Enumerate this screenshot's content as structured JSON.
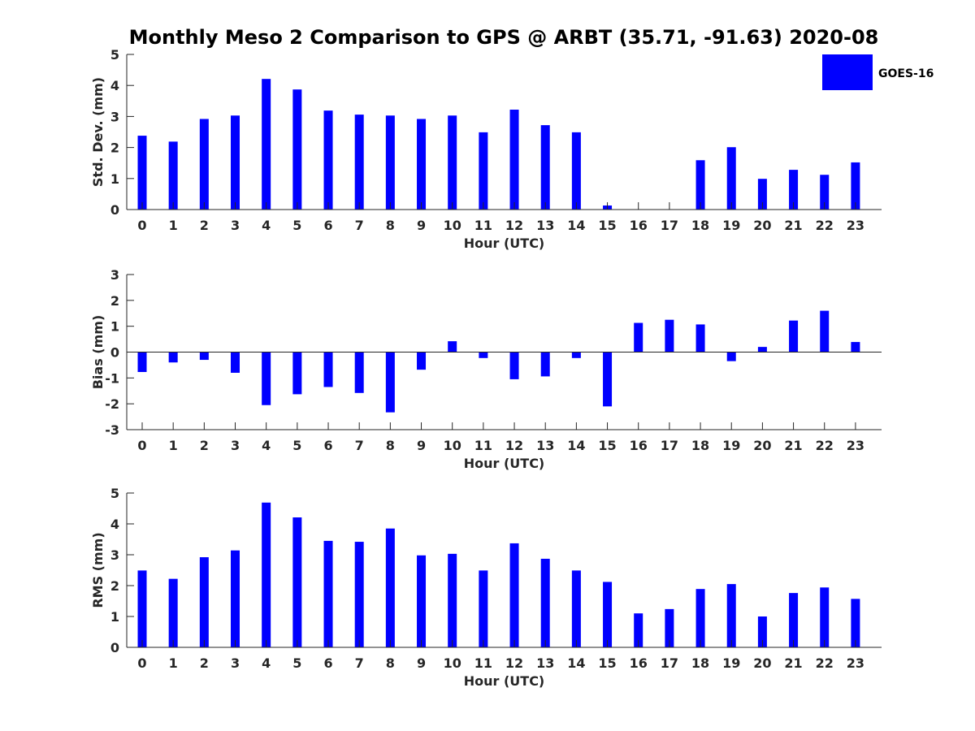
{
  "chart_data": {
    "type": "bar",
    "title": "Monthly Meso 2 Comparison to GPS @ ARBT (35.71, -91.63) 2020-08",
    "legend": {
      "labels": [
        "GOES-16"
      ],
      "placement": "top-right"
    },
    "colors": {
      "bar": "#0000ff",
      "axis": "#262626",
      "title": "#000000"
    },
    "categories": [
      "0",
      "1",
      "2",
      "3",
      "4",
      "5",
      "6",
      "7",
      "8",
      "9",
      "10",
      "11",
      "12",
      "13",
      "14",
      "15",
      "16",
      "17",
      "18",
      "19",
      "20",
      "21",
      "22",
      "23"
    ],
    "panels": [
      {
        "id": "stddev",
        "ylabel": "Std. Dev. (mm)",
        "xlabel": "Hour (UTC)",
        "ylim": [
          0,
          5
        ],
        "yticks": [
          "0",
          "1",
          "2",
          "3",
          "4",
          "5"
        ],
        "series": [
          {
            "name": "GOES-16",
            "values": [
              2.38,
              2.19,
              2.92,
              3.03,
              4.21,
              3.87,
              3.19,
              3.06,
              3.03,
              2.92,
              3.03,
              2.49,
              3.22,
              2.72,
              2.49,
              0.13,
              0.0,
              0.0,
              1.59,
              2.01,
              0.99,
              1.28,
              1.12,
              1.52
            ]
          }
        ]
      },
      {
        "id": "bias",
        "ylabel": "Bias (mm)",
        "xlabel": "Hour (UTC)",
        "ylim": [
          -3,
          3
        ],
        "yticks": [
          "-3",
          "-2",
          "-1",
          "0",
          "1",
          "2",
          "3"
        ],
        "series": [
          {
            "name": "GOES-16",
            "values": [
              -0.77,
              -0.4,
              -0.3,
              -0.8,
              -2.05,
              -1.63,
              -1.35,
              -1.58,
              -2.33,
              -0.68,
              0.42,
              -0.23,
              -1.05,
              -0.94,
              -0.23,
              -2.1,
              1.13,
              1.25,
              1.07,
              -0.35,
              0.2,
              1.22,
              1.6,
              0.39
            ]
          }
        ]
      },
      {
        "id": "rms",
        "ylabel": "RMS (mm)",
        "xlabel": "Hour (UTC)",
        "ylim": [
          0,
          5
        ],
        "yticks": [
          "0",
          "1",
          "2",
          "3",
          "4",
          "5"
        ],
        "series": [
          {
            "name": "GOES-16",
            "values": [
              2.49,
              2.22,
              2.92,
              3.14,
              4.69,
              4.21,
              3.45,
              3.42,
              3.85,
              2.98,
              3.03,
              2.49,
              3.37,
              2.87,
              2.49,
              2.12,
              1.1,
              1.24,
              1.89,
              2.05,
              1.0,
              1.76,
              1.94,
              1.57
            ]
          }
        ]
      }
    ]
  }
}
